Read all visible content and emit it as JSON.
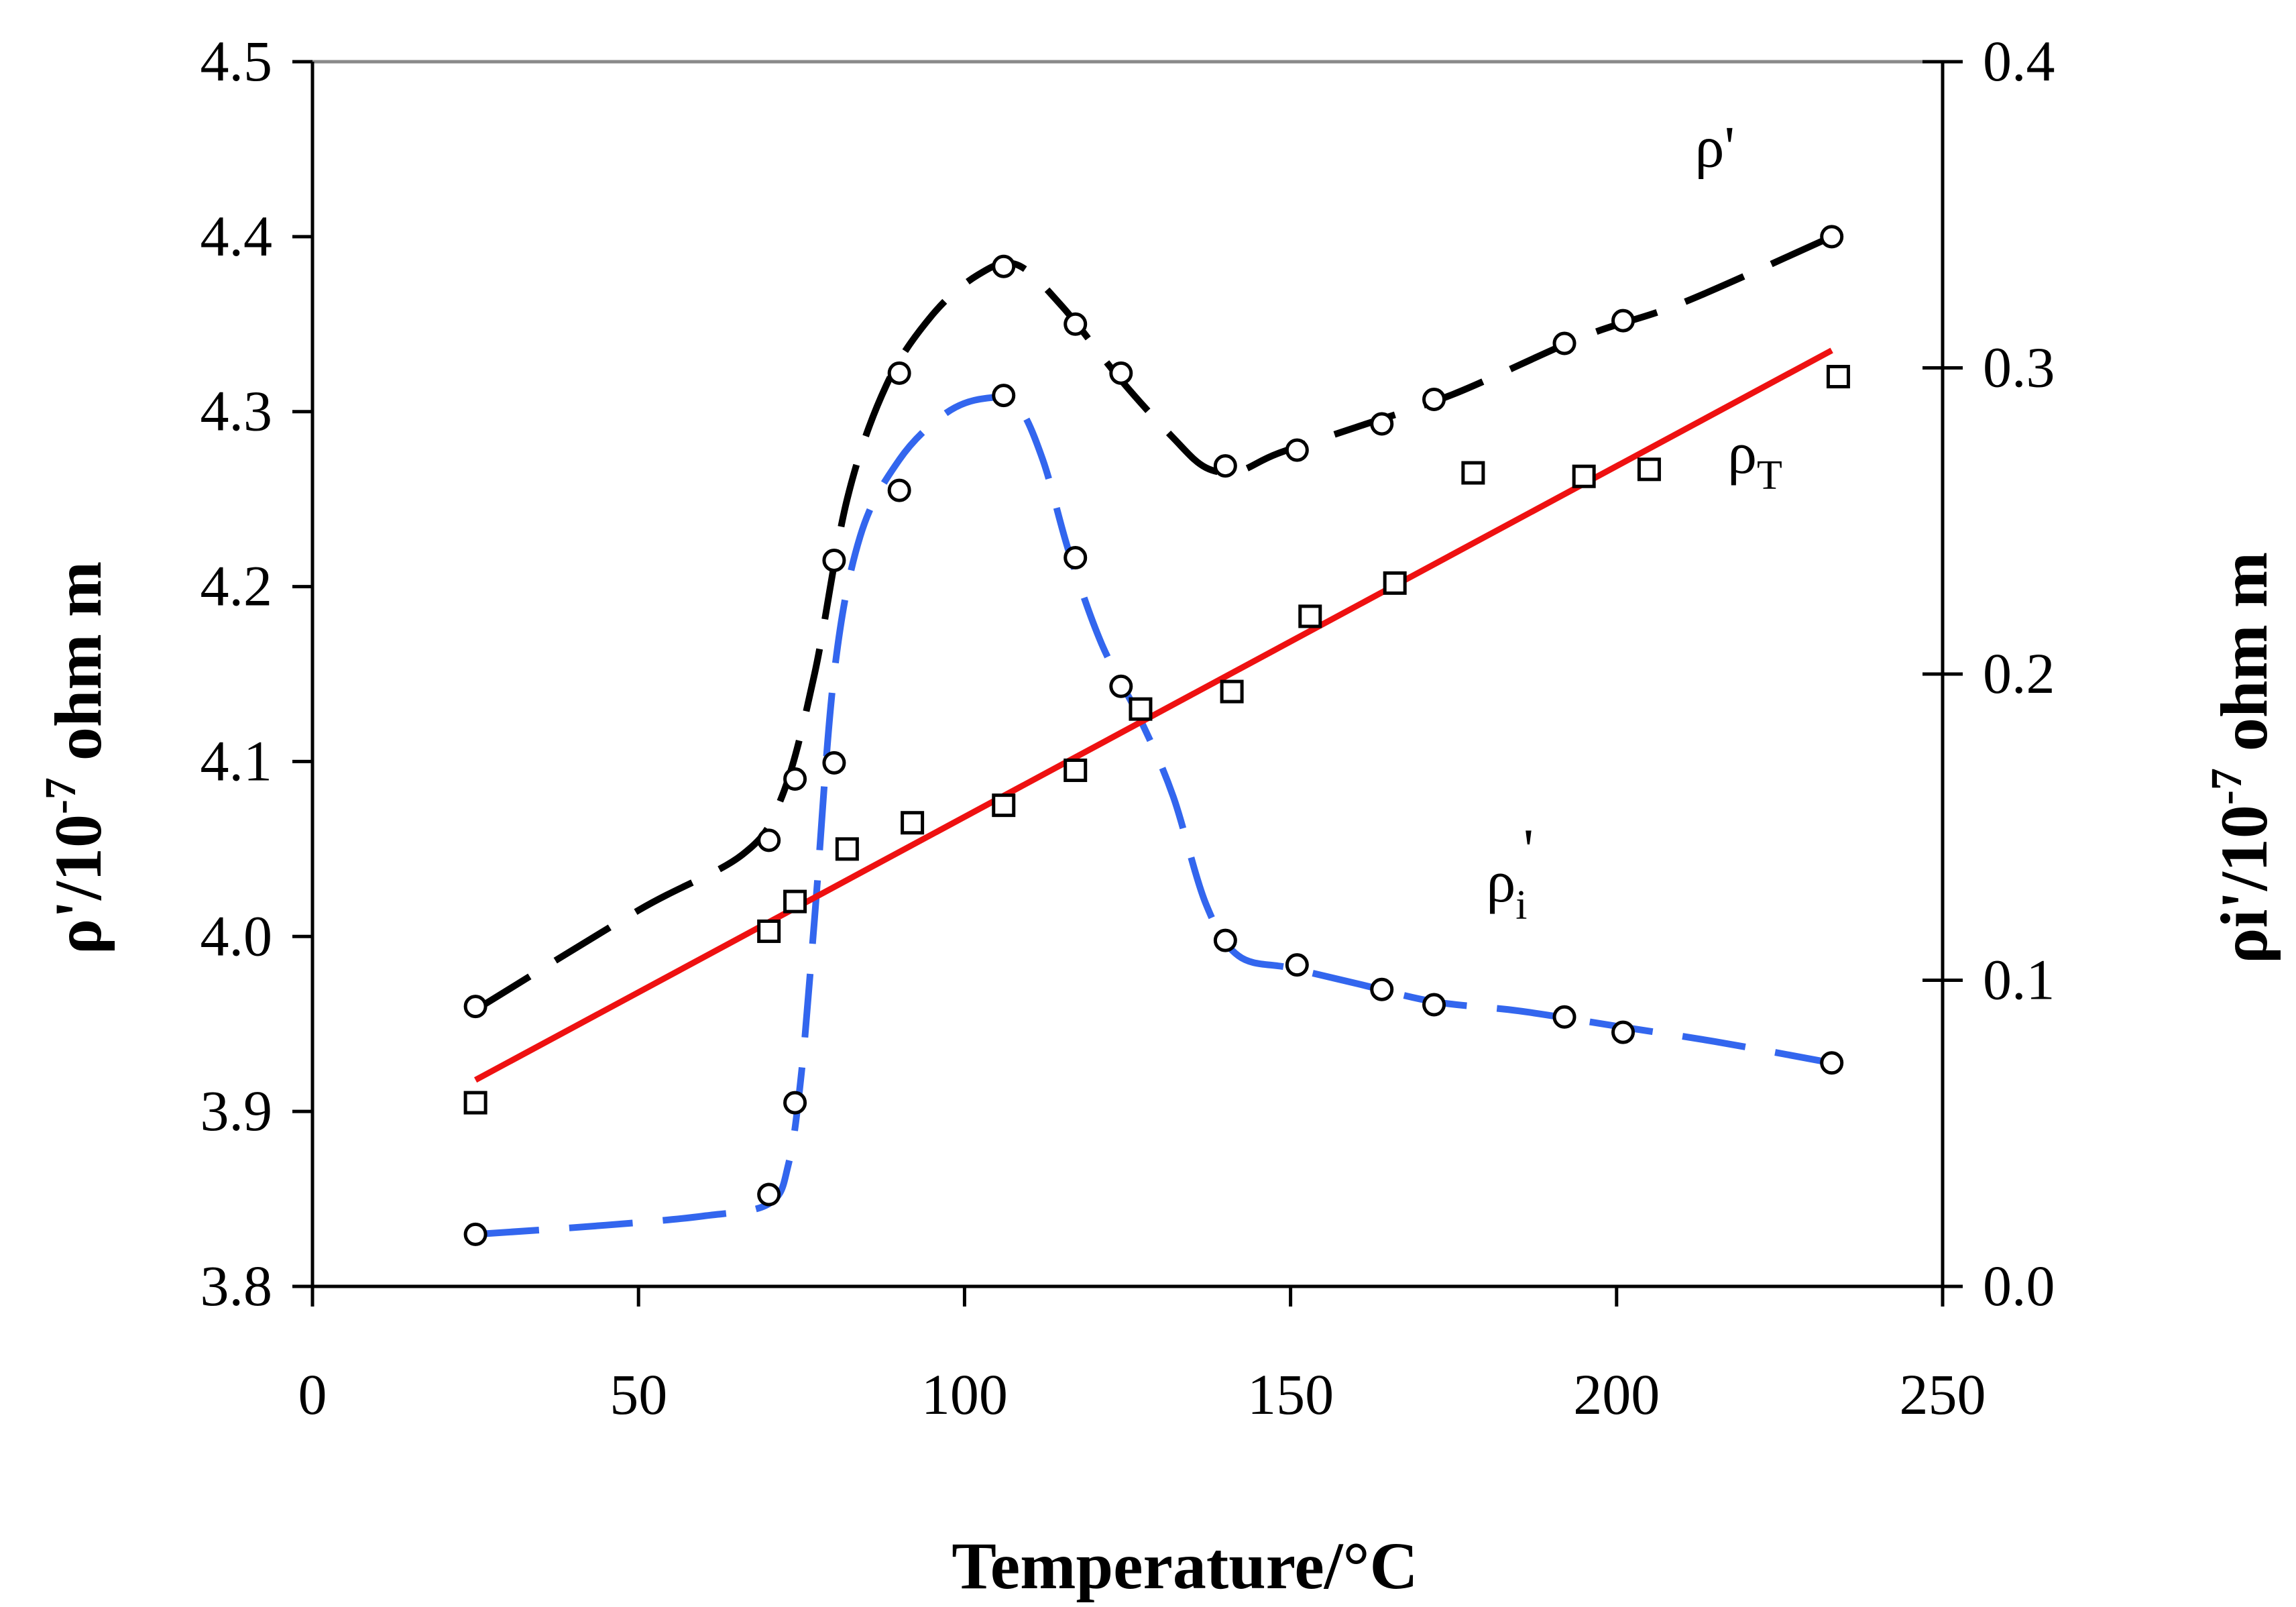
{
  "chart_data": {
    "type": "line",
    "title": "",
    "xlabel": "Temperature/°C",
    "ylabel_left": {
      "base": "ρ'/10",
      "exp": "-7",
      "unit": " ohm m"
    },
    "ylabel_right": {
      "base": "ρi'/10",
      "exp": "-7",
      "unit": " ohm m"
    },
    "xlim": [
      0,
      250
    ],
    "ylim_left": [
      3.8,
      4.5
    ],
    "ylim_right": [
      0.0,
      0.4
    ],
    "x_ticks": [
      "0",
      "50",
      "100",
      "150",
      "200",
      "250"
    ],
    "y_left_ticks": [
      "3.8",
      "3.9",
      "4.0",
      "4.1",
      "4.2",
      "4.3",
      "4.4",
      "4.5"
    ],
    "y_right_ticks": [
      "0.0",
      "0.1",
      "0.2",
      "0.3",
      "0.4"
    ],
    "legend": "none",
    "grid": false,
    "annotations": [
      {
        "id": "rho",
        "base": "ρ'",
        "sub": "",
        "x": 212,
        "y": 4.44
      },
      {
        "id": "rhoT",
        "base": "ρ",
        "sub": "T",
        "x": 217,
        "y": 4.265
      },
      {
        "id": "rhoi",
        "base": "ρ",
        "sub": "i",
        "sup": "'",
        "x": 180,
        "y": 4.02
      }
    ],
    "series": [
      {
        "name": "ρ'",
        "axis": "left",
        "color": "#000000",
        "style": "dashed",
        "x": [
          25,
          70,
          74,
          80,
          90,
          106,
          117,
          124,
          140,
          151,
          164,
          172,
          192,
          201,
          233
        ],
        "y": [
          3.96,
          4.055,
          4.09,
          4.215,
          4.322,
          4.383,
          4.35,
          4.322,
          4.269,
          4.278,
          4.293,
          4.307,
          4.339,
          4.352,
          4.4
        ],
        "fit_x": [
          25,
          50,
          66,
          72,
          77,
          82,
          88,
          95,
          102,
          108,
          115,
          124,
          132,
          137,
          142,
          148,
          160,
          175,
          195,
          210,
          233
        ],
        "fit_y": [
          3.958,
          4.015,
          4.047,
          4.08,
          4.15,
          4.25,
          4.315,
          4.355,
          4.378,
          4.384,
          4.36,
          4.318,
          4.285,
          4.268,
          4.266,
          4.276,
          4.291,
          4.31,
          4.343,
          4.362,
          4.4
        ]
      },
      {
        "name": "ρ'ᵢ",
        "axis": "right",
        "color": "#3366ee",
        "style": "dashed",
        "x": [
          25,
          70,
          74,
          80,
          90,
          106,
          117,
          124,
          140,
          151,
          164,
          172,
          192,
          201,
          233
        ],
        "y": [
          0.017,
          0.03,
          0.06,
          0.171,
          0.26,
          0.291,
          0.238,
          0.196,
          0.113,
          0.105,
          0.097,
          0.092,
          0.088,
          0.083,
          0.073
        ],
        "fit_x": [
          25,
          45,
          60,
          70,
          73,
          75,
          77,
          80,
          84,
          90,
          97,
          103,
          108,
          112,
          116,
          121,
          127,
          132,
          137,
          142,
          150,
          160,
          172,
          185,
          200,
          215,
          233
        ],
        "fit_y": [
          0.017,
          0.02,
          0.023,
          0.027,
          0.04,
          0.07,
          0.12,
          0.2,
          0.245,
          0.27,
          0.285,
          0.29,
          0.288,
          0.27,
          0.24,
          0.21,
          0.185,
          0.16,
          0.125,
          0.108,
          0.104,
          0.099,
          0.093,
          0.09,
          0.085,
          0.08,
          0.073
        ]
      },
      {
        "name": "ρT",
        "axis": "left",
        "color": "#000000",
        "style": "markers",
        "x": [
          25,
          70,
          74,
          82,
          92,
          106,
          117,
          127,
          141,
          153,
          166,
          178,
          195,
          205,
          234
        ],
        "y": [
          3.905,
          4.003,
          4.02,
          4.05,
          4.065,
          4.075,
          4.095,
          4.13,
          4.14,
          4.183,
          4.202,
          4.265,
          4.263,
          4.267,
          4.32
        ]
      },
      {
        "name": "ρT fit",
        "axis": "left",
        "color": "#ee1111",
        "style": "solid",
        "x": [
          25,
          233
        ],
        "y": [
          3.918,
          4.335
        ]
      }
    ]
  }
}
